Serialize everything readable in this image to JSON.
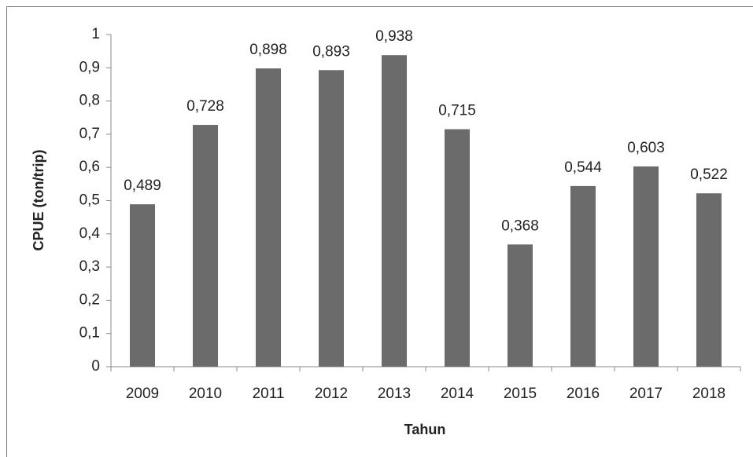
{
  "chart_data": {
    "type": "bar",
    "x_label": "Tahun",
    "y_label": "CPUE (ton/trip)",
    "categories": [
      "2009",
      "2010",
      "2011",
      "2012",
      "2013",
      "2014",
      "2015",
      "2016",
      "2017",
      "2018"
    ],
    "values": [
      0.489,
      0.728,
      0.898,
      0.893,
      0.938,
      0.715,
      0.368,
      0.544,
      0.603,
      0.522
    ],
    "value_labels": [
      "0,489",
      "0,728",
      "0,898",
      "0,893",
      "0,938",
      "0,715",
      "0,368",
      "0,544",
      "0,603",
      "0,522"
    ],
    "color": "#6b6b6b",
    "ylim": [
      0,
      1
    ],
    "yticks": [
      0,
      {
        "value": 0.1,
        "label": "0,1"
      },
      {
        "value": 0.2,
        "label": "0,2"
      },
      {
        "value": 0.3,
        "label": "0,3"
      },
      {
        "value": 0.4,
        "label": "0,4"
      },
      {
        "value": 0.5,
        "label": "0,5"
      },
      {
        "value": 0.6,
        "label": "0,6"
      },
      {
        "value": 0.7,
        "label": "0,7"
      },
      {
        "value": 0.8,
        "label": "0,8"
      },
      {
        "value": 0.9,
        "label": "0,9"
      },
      1
    ],
    "grid": false
  }
}
